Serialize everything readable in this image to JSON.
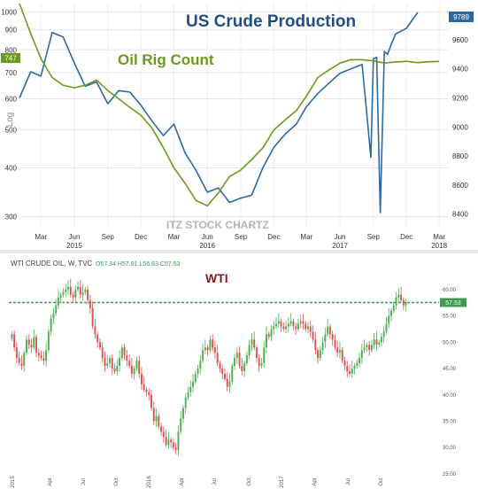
{
  "chart_data": [
    {
      "type": "line",
      "title_primary": "US Crude Production",
      "title_secondary": "Oil Rig Count",
      "watermark": "ITZ STOCK CHARTZ",
      "left_axis": {
        "scale": "log",
        "label": "Log",
        "ticks": [
          "1000",
          "900",
          "800",
          "700",
          "600",
          "500",
          "400",
          "300"
        ],
        "range": [
          280,
          1050
        ],
        "last_value_badge": "747"
      },
      "right_axis": {
        "ticks": [
          "9600",
          "9400",
          "9200",
          "9000",
          "8800",
          "8600",
          "8400"
        ],
        "range": [
          8300,
          9850
        ],
        "last_value_badge": "9789"
      },
      "x_labels": [
        "Mar",
        "Jun",
        "Sep",
        "Dec",
        "Mar",
        "Jun",
        "Sep",
        "Dec",
        "Mar",
        "Jun",
        "Sep",
        "Dec",
        "Mar"
      ],
      "year_labels": [
        "2015",
        "2016",
        "2017",
        "2018"
      ],
      "grid": true,
      "series": [
        {
          "name": "US Crude Production",
          "axis": "right",
          "color": "#2b6aa0",
          "x": [
            "2015-01",
            "2015-02",
            "2015-03",
            "2015-04",
            "2015-05",
            "2015-06",
            "2015-07",
            "2015-08",
            "2015-09",
            "2015-10",
            "2015-11",
            "2015-12",
            "2016-01",
            "2016-02",
            "2016-03",
            "2016-04",
            "2016-05",
            "2016-06",
            "2016-07",
            "2016-08",
            "2016-09",
            "2016-10",
            "2016-11",
            "2016-12",
            "2017-01",
            "2017-02",
            "2017-03",
            "2017-04",
            "2017-05",
            "2017-06",
            "2017-07",
            "2017-08",
            "2017-08-25",
            "2017-09",
            "2017-09-10",
            "2017-09-20",
            "2017-10",
            "2017-10-10",
            "2017-10-20",
            "2017-11",
            "2017-12",
            "2018-01"
          ],
          "y": [
            9200,
            9380,
            9350,
            9650,
            9620,
            9440,
            9280,
            9310,
            9160,
            9250,
            9240,
            9150,
            9040,
            8940,
            9020,
            8820,
            8700,
            8550,
            8580,
            8480,
            8510,
            8530,
            8720,
            8860,
            8950,
            9020,
            9140,
            9230,
            9300,
            9370,
            9400,
            9430,
            8790,
            9470,
            9480,
            8410,
            9520,
            9500,
            9570,
            9640,
            9680,
            9789
          ]
        },
        {
          "name": "Oil Rig Count",
          "axis": "left",
          "color": "#6c9a1f",
          "x": [
            "2015-01",
            "2015-02",
            "2015-03",
            "2015-04",
            "2015-05",
            "2015-06",
            "2015-07",
            "2015-08",
            "2015-09",
            "2015-10",
            "2015-11",
            "2015-12",
            "2016-01",
            "2016-02",
            "2016-03",
            "2016-04",
            "2016-05",
            "2016-06",
            "2016-07",
            "2016-08",
            "2016-09",
            "2016-10",
            "2016-11",
            "2016-12",
            "2017-01",
            "2017-02",
            "2017-03",
            "2017-04",
            "2017-05",
            "2017-06",
            "2017-07",
            "2017-08",
            "2017-09",
            "2017-10",
            "2017-11",
            "2017-12",
            "2018-01",
            "2018-02",
            "2018-03"
          ],
          "y": [
            1050,
            880,
            760,
            680,
            650,
            640,
            650,
            670,
            630,
            600,
            570,
            545,
            505,
            450,
            400,
            365,
            330,
            320,
            345,
            380,
            395,
            420,
            450,
            500,
            530,
            560,
            610,
            680,
            710,
            740,
            755,
            755,
            750,
            740,
            745,
            748,
            742,
            746,
            747
          ]
        }
      ]
    },
    {
      "type": "candlestick",
      "title": "WTI",
      "header": "WTI CRUDE OIL, W, TVC",
      "ohlc_text": "O57.34 H57.91 L56.83 C57.53",
      "price_axis": {
        "ticks": [
          "60.00",
          "55.00",
          "50.00",
          "45.00",
          "40.00",
          "35.00",
          "30.00",
          "25.00"
        ],
        "range": [
          25.5,
          63.5
        ],
        "last_price": "57.53"
      },
      "x_labels": [
        "2015",
        "Apr",
        "Jul",
        "Oct",
        "2016",
        "Apr",
        "Jul",
        "Oct",
        "2017",
        "Apr",
        "Jul",
        "Oct"
      ],
      "grid": false,
      "up_color": "#4caf50",
      "down_color": "#d9534f",
      "closes": [
        51.5,
        49.0,
        47.0,
        46.0,
        45.5,
        48.0,
        50.5,
        49.5,
        49.0,
        51.0,
        48.0,
        47.5,
        47.0,
        46.5,
        48.5,
        52.0,
        54.5,
        55.5,
        57.0,
        58.5,
        59.0,
        59.5,
        60.0,
        60.5,
        59.0,
        58.5,
        60.0,
        60.5,
        59.0,
        59.5,
        60.0,
        58.0,
        56.5,
        53.0,
        51.5,
        50.0,
        49.0,
        47.0,
        45.5,
        46.0,
        47.0,
        45.0,
        44.5,
        45.5,
        47.0,
        49.0,
        47.5,
        46.5,
        45.5,
        44.0,
        45.0,
        46.5,
        44.0,
        42.0,
        41.0,
        40.5,
        40.0,
        37.5,
        35.0,
        36.0,
        34.0,
        33.0,
        32.0,
        30.5,
        31.5,
        31.0,
        30.0,
        29.5,
        33.0,
        35.5,
        37.5,
        39.5,
        40.5,
        41.5,
        42.5,
        44.0,
        45.0,
        46.5,
        48.5,
        49.0,
        48.5,
        50.5,
        49.0,
        48.0,
        46.0,
        45.0,
        44.0,
        43.0,
        41.5,
        42.5,
        45.5,
        47.0,
        48.0,
        45.5,
        44.5,
        46.0,
        47.5,
        49.5,
        50.5,
        49.0,
        47.0,
        45.5,
        46.0,
        49.0,
        51.5,
        51.0,
        52.5,
        53.0,
        53.5,
        54.0,
        53.0,
        52.5,
        53.0,
        53.5,
        54.0,
        53.0,
        52.5,
        53.5,
        54.0,
        53.5,
        52.5,
        53.0,
        52.0,
        50.5,
        48.5,
        47.0,
        48.5,
        50.0,
        51.5,
        53.0,
        51.5,
        50.5,
        49.0,
        48.0,
        48.5,
        46.5,
        45.5,
        44.5,
        44.0,
        45.0,
        45.5,
        46.0,
        47.0,
        48.5,
        49.0,
        49.5,
        48.5,
        49.5,
        50.5,
        49.5,
        50.0,
        51.0,
        52.0,
        53.5,
        55.0,
        56.0,
        57.0,
        58.5,
        59.0,
        58.0,
        57.0,
        57.5
      ]
    }
  ]
}
